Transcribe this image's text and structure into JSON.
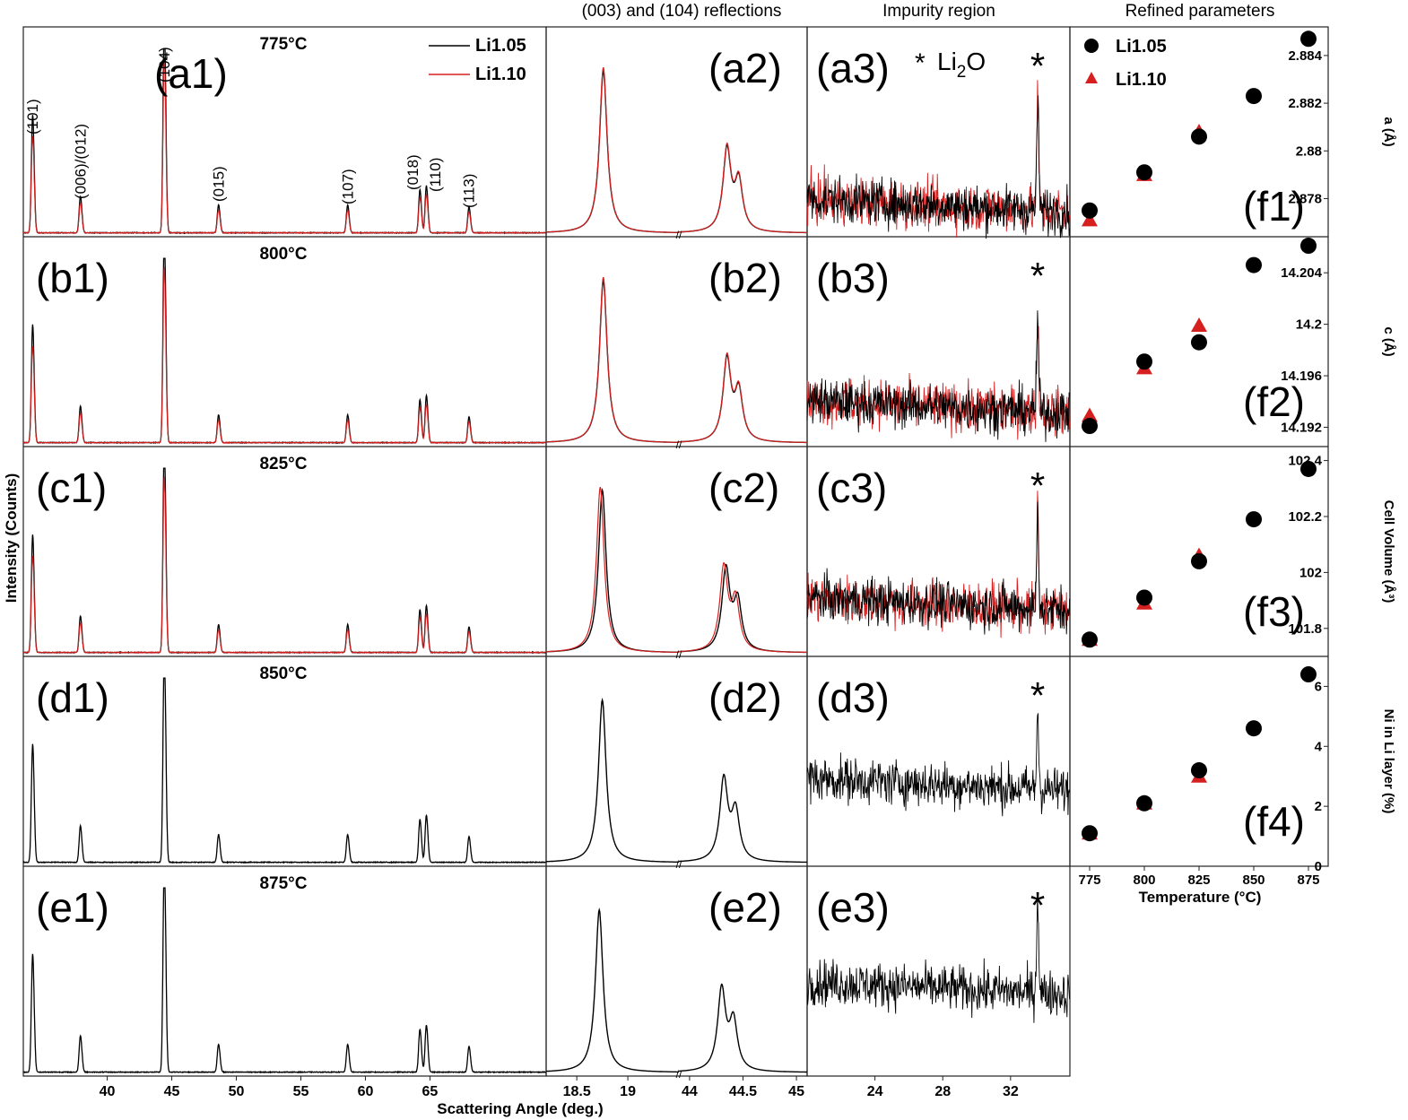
{
  "panel_titles": {
    "col2": "(003) and (104) reflections",
    "col3": "Impurity region",
    "col4": "Refined parameters"
  },
  "axes": {
    "ylabel": "Intensity (Counts)",
    "xlabel_left": "Scattering Angle (deg.)",
    "xlabel_right": "Temperature (°C)"
  },
  "impurity_label": {
    "prefix": "Li",
    "sub": "2",
    "suffix": "O"
  },
  "chart_data": [
    {
      "type": "line",
      "id": "full_patterns",
      "xlabel": "Scattering Angle (deg.)",
      "ylabel": "Intensity (Counts)",
      "xlim": [
        33.5,
        74
      ],
      "xticks": [
        "40",
        "45",
        "50",
        "55",
        "60",
        "65"
      ],
      "xtick_values": [
        40,
        45,
        50,
        55,
        60,
        65
      ],
      "series": [
        {
          "name": "Li1.05",
          "color": "#000000"
        },
        {
          "name": "Li1.10",
          "color": "#d62020"
        }
      ],
      "rows": [
        {
          "panel": "(a1)",
          "temperature": "775°C",
          "li110_shown": true
        },
        {
          "panel": "(b1)",
          "temperature": "800°C",
          "li110_shown": true
        },
        {
          "panel": "(c1)",
          "temperature": "825°C",
          "li110_shown": true
        },
        {
          "panel": "(d1)",
          "temperature": "850°C",
          "li110_shown": false
        },
        {
          "panel": "(e1)",
          "temperature": "875°C",
          "li110_shown": false
        }
      ],
      "peaks": [
        {
          "label": "(101)",
          "x": 34.2,
          "rel": 0.55
        },
        {
          "label": "(006)/(012)",
          "x": 37.9,
          "rel": 0.17
        },
        {
          "label": "(104)",
          "x": 44.4,
          "rel": 1.0
        },
        {
          "label": "(015)",
          "x": 48.6,
          "rel": 0.13
        },
        {
          "label": "(107)",
          "x": 58.6,
          "rel": 0.13
        },
        {
          "label": "(018)",
          "x": 64.2,
          "rel": 0.2
        },
        {
          "label": "(110)",
          "x": 64.7,
          "rel": 0.22
        },
        {
          "label": "(113)",
          "x": 68.0,
          "rel": 0.12
        }
      ]
    },
    {
      "type": "line",
      "id": "peak_zoom",
      "title": "(003) and (104) reflections",
      "xticks": [
        "18.5",
        "19",
        "44",
        "44.5",
        "45"
      ],
      "xtick_values": [
        18.5,
        19,
        44,
        44.5,
        45
      ],
      "xlim_left": [
        18.2,
        19.5
      ],
      "xlim_right": [
        43.9,
        45.1
      ],
      "rows": [
        "(a2)",
        "(b2)",
        "(c2)",
        "(d2)",
        "(e2)"
      ],
      "peak_003_center": [
        18.76,
        18.76,
        18.75,
        18.75,
        18.72
      ],
      "peak_104_center": [
        44.35,
        44.35,
        44.34,
        44.32,
        44.3
      ]
    },
    {
      "type": "line",
      "id": "impurity_region",
      "title": "Impurity region",
      "xticks": [
        "24",
        "28",
        "32"
      ],
      "xtick_values": [
        24,
        28,
        32
      ],
      "xlim": [
        20.0,
        35.5
      ],
      "rows": [
        "(a3)",
        "(b3)",
        "(c3)",
        "(d3)",
        "(e3)"
      ],
      "impurity": {
        "label": "Li2O",
        "marker": "*",
        "x": 33.6
      }
    },
    {
      "type": "scatter",
      "id": "refined_parameters",
      "title": "Refined parameters",
      "xlabel": "Temperature (°C)",
      "x": [
        775,
        800,
        825,
        850,
        875
      ],
      "xticks": [
        "775",
        "800",
        "825",
        "850",
        "875"
      ],
      "legend": {
        "placement": "top-left",
        "entries": [
          "Li1.05",
          "Li1.10"
        ]
      },
      "series_styles": [
        {
          "name": "Li1.05",
          "marker": "circle",
          "color": "#000000"
        },
        {
          "name": "Li1.10",
          "marker": "triangle",
          "color": "#d62020"
        }
      ],
      "panels": [
        {
          "panel": "(f1)",
          "ylabel": "a (Å)",
          "ylim": [
            2.8764,
            2.8852
          ],
          "yticks": [
            "2.878",
            "2.88",
            "2.882",
            "2.884"
          ],
          "ytick_values": [
            2.878,
            2.88,
            2.882,
            2.884
          ],
          "Li1.05": [
            2.8775,
            2.8791,
            2.8806,
            2.8823,
            2.8847
          ],
          "Li1.10": [
            2.8771,
            2.879,
            2.8808,
            null,
            null
          ]
        },
        {
          "panel": "(f2)",
          "ylabel": "c (Å)",
          "ylim": [
            14.1905,
            14.2068
          ],
          "yticks": [
            "14.192",
            "14.196",
            "14.2",
            "14.204"
          ],
          "ytick_values": [
            14.192,
            14.196,
            14.2,
            14.204
          ],
          "Li1.05": [
            14.1921,
            14.1971,
            14.1986,
            14.2046,
            14.2061
          ],
          "Li1.10": [
            14.1929,
            14.1966,
            14.1999,
            null,
            null
          ]
        },
        {
          "panel": "(f3)",
          "ylabel": "Cell Volume (Å³)",
          "ylim": [
            101.7,
            102.45
          ],
          "yticks": [
            "101.8",
            "102",
            "102.2",
            "102.4"
          ],
          "ytick_values": [
            101.8,
            102,
            102.2,
            102.4
          ],
          "Li1.05": [
            101.76,
            101.91,
            102.04,
            102.19,
            102.37
          ],
          "Li1.10": [
            101.76,
            101.89,
            102.06,
            null,
            null
          ]
        },
        {
          "panel": "(f4)",
          "ylabel": "Ni in Li layer (%)",
          "ylim": [
            0,
            7
          ],
          "yticks": [
            "0",
            "2",
            "4",
            "6"
          ],
          "ytick_values": [
            0,
            2,
            4,
            6
          ],
          "Li1.05": [
            1.1,
            2.1,
            3.2,
            4.6,
            6.4
          ],
          "Li1.10": [
            1.1,
            2.1,
            3.0,
            null,
            null
          ]
        }
      ]
    }
  ]
}
